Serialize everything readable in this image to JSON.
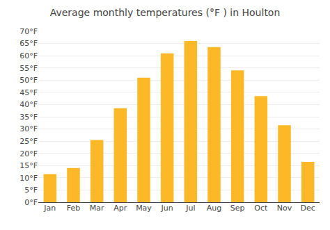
{
  "chart_data": {
    "type": "bar",
    "title": "Average monthly temperatures (°F ) in Houlton",
    "categories": [
      "Jan",
      "Feb",
      "Mar",
      "Apr",
      "May",
      "Jun",
      "Jul",
      "Aug",
      "Sep",
      "Oct",
      "Nov",
      "Dec"
    ],
    "values": [
      11.5,
      14.0,
      25.5,
      38.5,
      51.0,
      61.0,
      66.0,
      63.5,
      54.0,
      43.5,
      31.5,
      16.5
    ],
    "color": "#FDB827",
    "ylim": [
      0,
      70
    ],
    "yticks": [
      {
        "value": 0,
        "label": "0°F"
      },
      {
        "value": 5,
        "label": "5°F"
      },
      {
        "value": 10,
        "label": "10°F"
      },
      {
        "value": 15,
        "label": "15°F"
      },
      {
        "value": 20,
        "label": "20°F"
      },
      {
        "value": 25,
        "label": "25°F"
      },
      {
        "value": 30,
        "label": "30°F"
      },
      {
        "value": 35,
        "label": "35°F"
      },
      {
        "value": 40,
        "label": "40°F"
      },
      {
        "value": 45,
        "label": "45°F"
      },
      {
        "value": 50,
        "label": "50°F"
      },
      {
        "value": 55,
        "label": "55°F"
      },
      {
        "value": 60,
        "label": "60°F"
      },
      {
        "value": 65,
        "label": "65°F"
      },
      {
        "value": 70,
        "label": "70°F"
      }
    ],
    "grid": true
  }
}
